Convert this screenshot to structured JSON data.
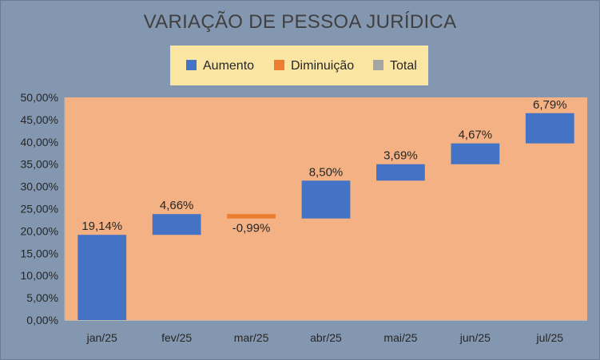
{
  "chart_data": {
    "type": "waterfall",
    "title": "VARIAÇÃO DE PESSOA JURÍDICA",
    "legend": {
      "placement": "top",
      "entries": [
        {
          "name": "Aumento",
          "color": "#4472c4"
        },
        {
          "name": "Diminuição",
          "color": "#ed7d31"
        },
        {
          "name": "Total",
          "color": "#a5a5a5"
        }
      ]
    },
    "categories": [
      "jan/25",
      "fev/25",
      "mar/25",
      "abr/25",
      "mai/25",
      "jun/25",
      "jul/25"
    ],
    "values": [
      19.14,
      4.66,
      -0.99,
      8.5,
      3.69,
      4.67,
      6.79
    ],
    "value_labels": [
      "19,14%",
      "4,66%",
      "-0,99%",
      "8,50%",
      "3,69%",
      "4,67%",
      "6,79%"
    ],
    "y_ticks": [
      "0,00%",
      "5,00%",
      "10,00%",
      "15,00%",
      "20,00%",
      "25,00%",
      "30,00%",
      "35,00%",
      "40,00%",
      "45,00%",
      "50,00%"
    ],
    "ylim": [
      0,
      50
    ],
    "grid": false,
    "colors": {
      "increase": "#4472c4",
      "decrease": "#ed7d31",
      "plot_background": "#f4b183",
      "chart_background": "#8497b0",
      "legend_background": "#fbe5a3"
    }
  }
}
